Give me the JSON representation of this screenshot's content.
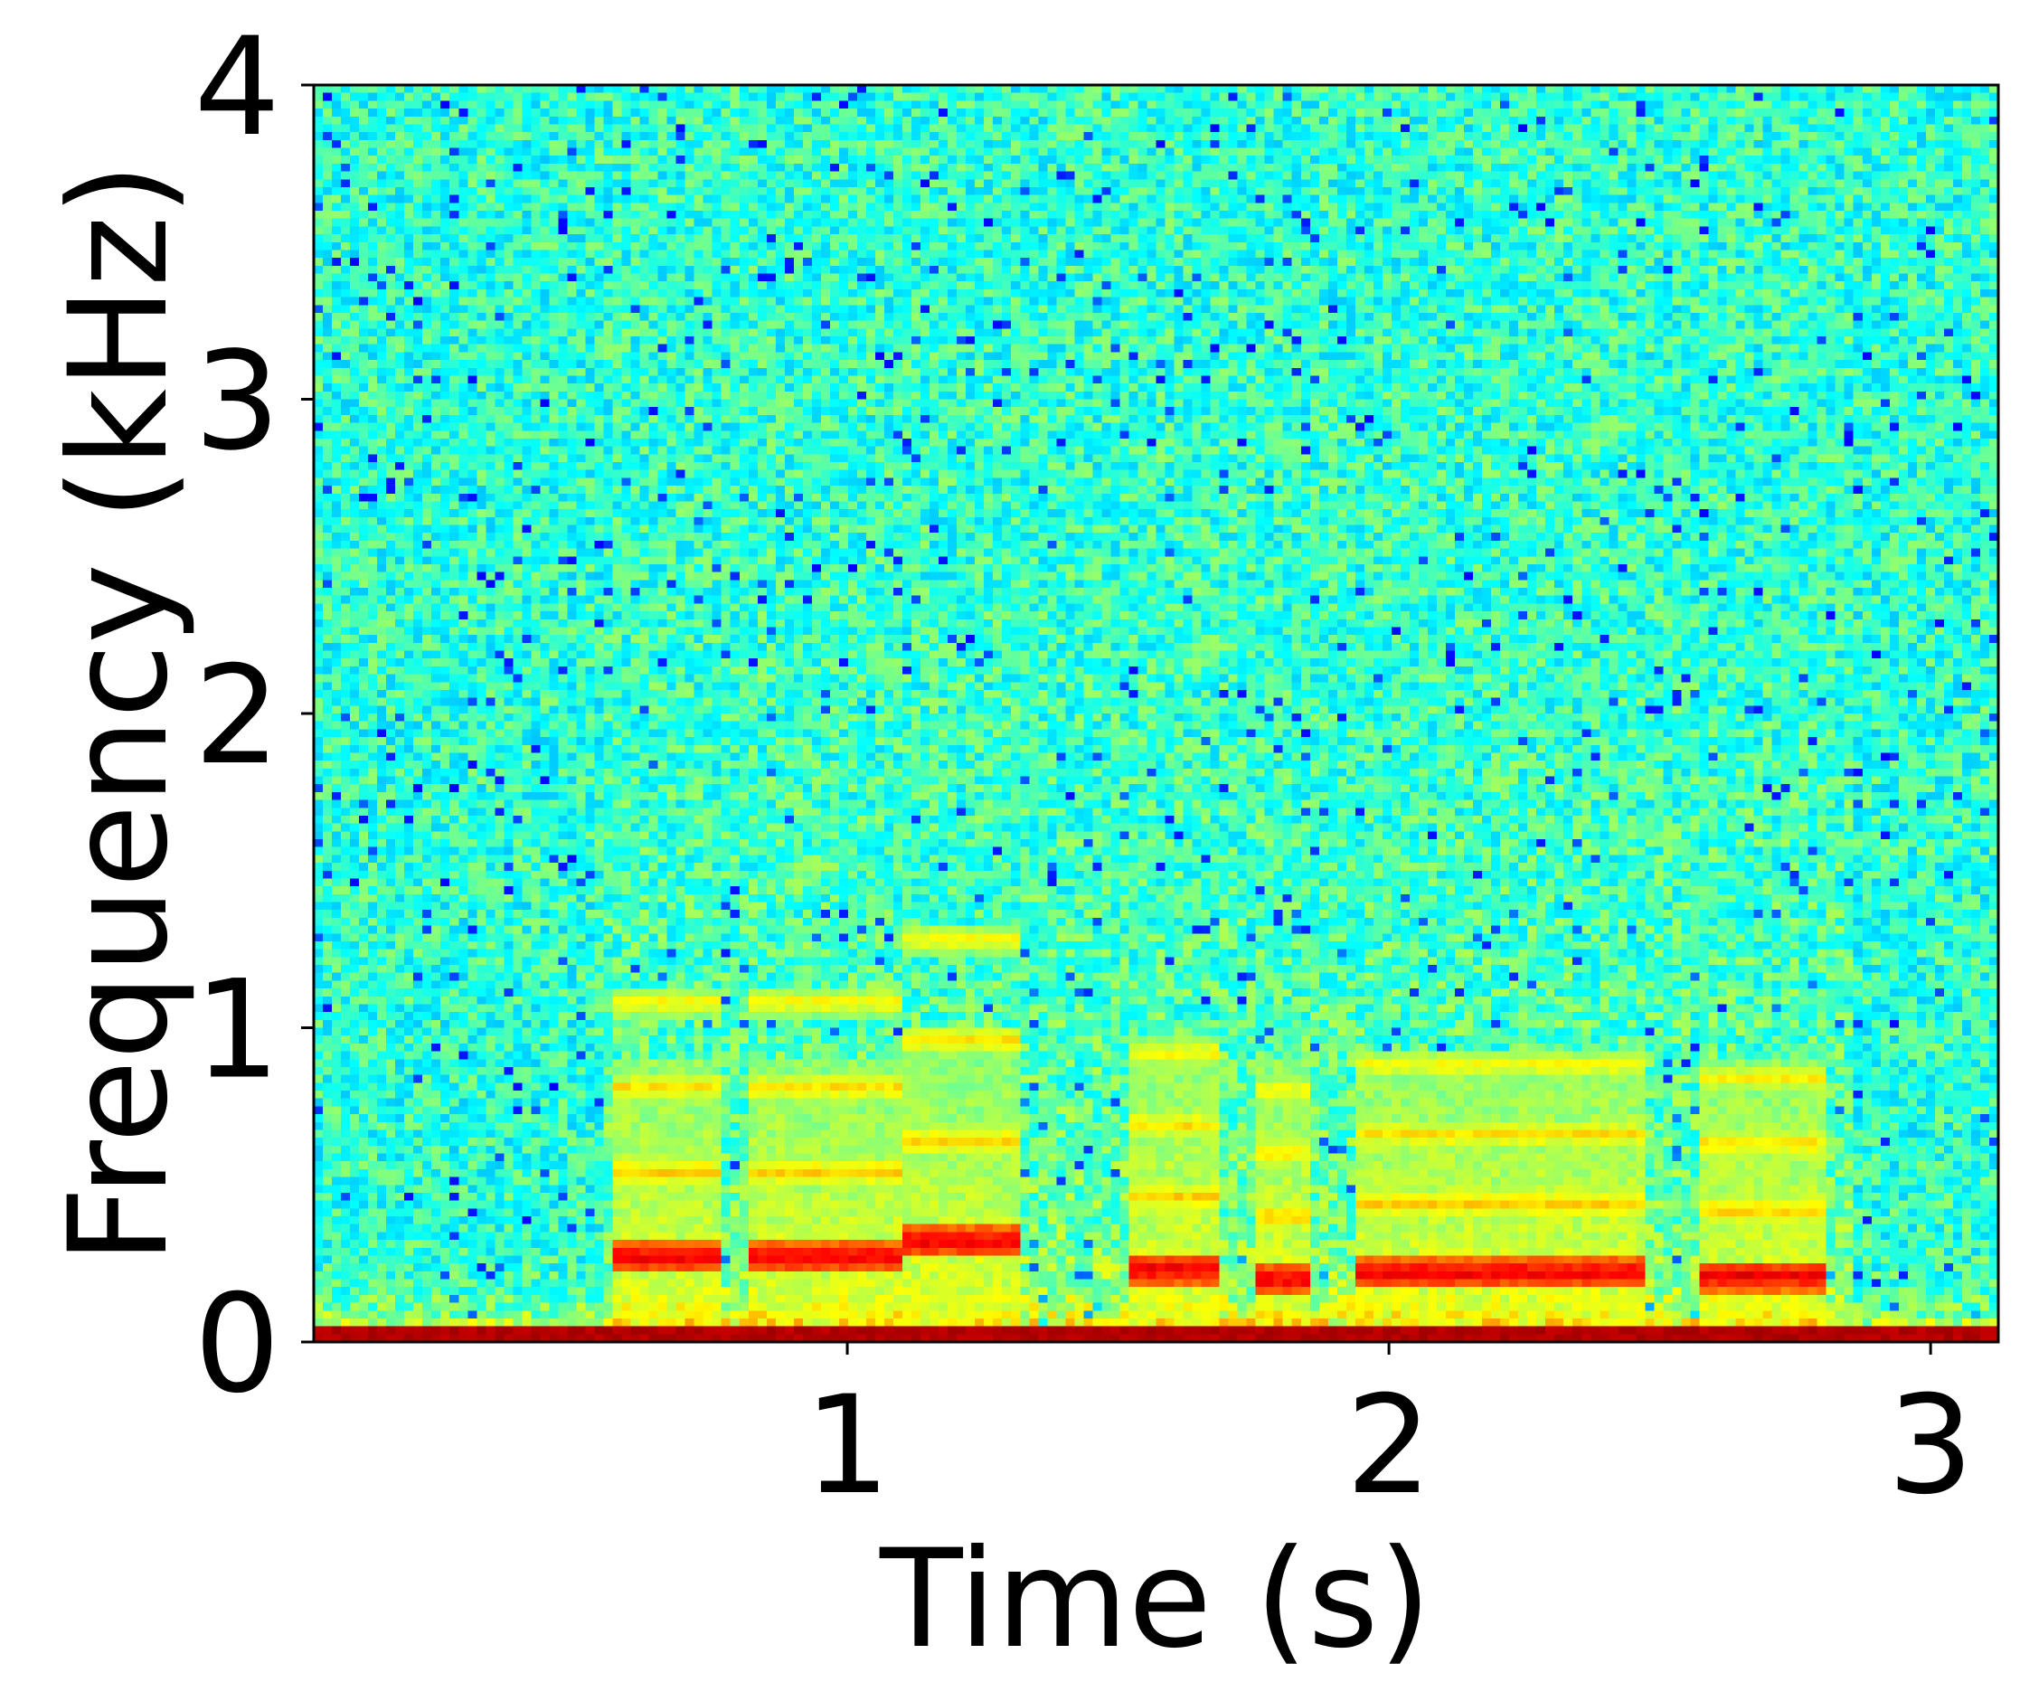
{
  "chart_data": {
    "type": "heatmap",
    "title": "",
    "xlabel": "Time (s)",
    "ylabel": "Frequency (kHz)",
    "xlim": [
      0.015,
      3.125
    ],
    "ylim": [
      0,
      4
    ],
    "xticks": [
      1,
      2,
      3
    ],
    "xtick_labels": [
      "1",
      "2",
      "3"
    ],
    "yticks": [
      0,
      1,
      2,
      3,
      4
    ],
    "ytick_labels": [
      "0",
      "1",
      "2",
      "3",
      "4"
    ],
    "colormap": "jet",
    "background_level": "cyan-green noise",
    "harmonic_bands": [
      {
        "t_start": 0.57,
        "t_end": 0.76,
        "f_khz": 0.27
      },
      {
        "t_start": 0.81,
        "t_end": 1.1,
        "f_khz": 0.27
      },
      {
        "t_start": 1.1,
        "t_end": 1.32,
        "f_khz": 0.32
      },
      {
        "t_start": 1.52,
        "t_end": 1.68,
        "f_khz": 0.23
      },
      {
        "t_start": 1.76,
        "t_end": 1.86,
        "f_khz": 0.2
      },
      {
        "t_start": 1.93,
        "t_end": 2.48,
        "f_khz": 0.22
      },
      {
        "t_start": 2.58,
        "t_end": 2.8,
        "f_khz": 0.21
      }
    ],
    "low_frequency_band_khz": 0.05
  }
}
